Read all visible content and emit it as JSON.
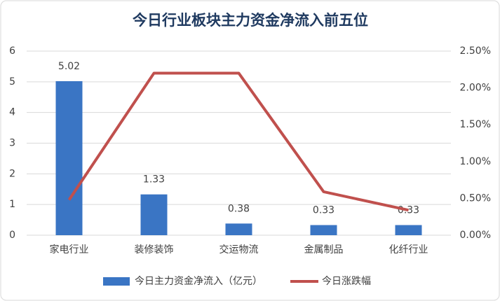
{
  "chart_data": {
    "type": "bar-line",
    "title": "今日行业板块主力资金净流入前五位",
    "categories": [
      "家电行业",
      "装修装饰",
      "交运物流",
      "金属制品",
      "化纤行业"
    ],
    "series": [
      {
        "name": "今日主力资金净流入（亿元）",
        "type": "bar",
        "color": "#3a75c4",
        "values": [
          5.02,
          1.33,
          0.38,
          0.33,
          0.33
        ]
      },
      {
        "name": "今日涨跌幅",
        "type": "line",
        "axis": "y2",
        "color": "#c0504d",
        "values": [
          0.48,
          2.2,
          2.2,
          0.59,
          0.34
        ]
      }
    ],
    "ylim": [
      0,
      6
    ],
    "yticks": [
      0,
      1,
      2,
      3,
      4,
      5,
      6
    ],
    "y2lim": [
      0,
      2.5
    ],
    "y2ticks": [
      {
        "value": 0,
        "label": "0.00%"
      },
      {
        "value": 0.5,
        "label": "0.50%"
      },
      {
        "value": 1,
        "label": "1.00%"
      },
      {
        "value": 1.5,
        "label": "1.50%"
      },
      {
        "value": 2,
        "label": "2.00%"
      },
      {
        "value": 2.5,
        "label": "2.50%"
      }
    ],
    "grid": true,
    "legend": "bottom"
  }
}
